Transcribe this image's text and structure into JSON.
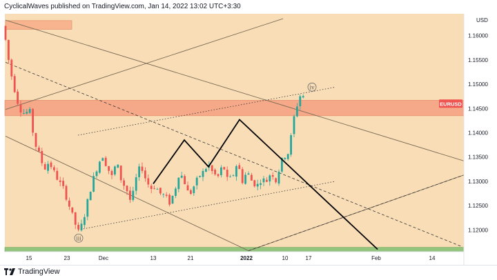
{
  "header": {
    "publisher_line": "CyclicalWaves published on TradingView.com, Jan 14, 2022 13:02 UTC+3:30"
  },
  "footer": {
    "brand": "TradingView"
  },
  "colors": {
    "background_fill": "#f9ddb6",
    "resistance_zone": "#f5a988",
    "top_box": "#f7b48e",
    "support_zone": "#93c47d",
    "candle_up": "#26a69a",
    "candle_down": "#ef5350",
    "symbol_tag": "#ef5350",
    "pattern_line": "#000000",
    "channel_line": "#7a6a55"
  },
  "chart_data": {
    "type": "candlestick",
    "symbol_label": "EURUSD",
    "currency_label": "USD",
    "y_axis_range": [
      1.1155,
      1.1645
    ],
    "y_ticks": [
      "1.16000",
      "1.15500",
      "1.15000",
      "1.14500",
      "1.14000",
      "1.13500",
      "1.13000",
      "1.12500",
      "1.12000"
    ],
    "x_ticks": [
      "15",
      "23",
      "Dec",
      "13",
      "21",
      "2022",
      "10",
      "17",
      "Feb",
      "14"
    ],
    "last_price": "1.1460",
    "price_path": [
      [
        0,
        1.162
      ],
      [
        7,
        1.16
      ],
      [
        14,
        1.1535
      ],
      [
        21,
        1.149
      ],
      [
        28,
        1.145
      ],
      [
        35,
        1.144
      ],
      [
        43,
        1.1445
      ],
      [
        50,
        1.138
      ],
      [
        57,
        1.1355
      ],
      [
        64,
        1.1325
      ],
      [
        71,
        1.134
      ],
      [
        78,
        1.132
      ],
      [
        85,
        1.13
      ],
      [
        92,
        1.1285
      ],
      [
        99,
        1.1255
      ],
      [
        106,
        1.1225
      ],
      [
        113,
        1.1195
      ],
      [
        120,
        1.1215
      ],
      [
        127,
        1.126
      ],
      [
        134,
        1.13
      ],
      [
        141,
        1.133
      ],
      [
        148,
        1.1355
      ],
      [
        155,
        1.133
      ],
      [
        162,
        1.131
      ],
      [
        169,
        1.134
      ],
      [
        176,
        1.13
      ],
      [
        183,
        1.1285
      ],
      [
        190,
        1.1255
      ],
      [
        197,
        1.1305
      ],
      [
        204,
        1.1335
      ],
      [
        211,
        1.1305
      ],
      [
        218,
        1.1285
      ],
      [
        225,
        1.129
      ],
      [
        232,
        1.1275
      ],
      [
        239,
        1.127
      ],
      [
        246,
        1.1255
      ],
      [
        253,
        1.128
      ],
      [
        260,
        1.132
      ],
      [
        267,
        1.13
      ],
      [
        274,
        1.127
      ],
      [
        281,
        1.129
      ],
      [
        288,
        1.131
      ],
      [
        295,
        1.132
      ],
      [
        302,
        1.1335
      ],
      [
        309,
        1.1315
      ],
      [
        316,
        1.131
      ],
      [
        323,
        1.1335
      ],
      [
        330,
        1.13
      ],
      [
        337,
        1.131
      ],
      [
        344,
        1.134
      ],
      [
        351,
        1.13
      ],
      [
        358,
        1.132
      ],
      [
        365,
        1.13
      ],
      [
        372,
        1.129
      ],
      [
        379,
        1.1305
      ],
      [
        386,
        1.13
      ],
      [
        393,
        1.132
      ],
      [
        400,
        1.13
      ],
      [
        407,
        1.134
      ],
      [
        414,
        1.1355
      ],
      [
        419,
        1.136
      ],
      [
        424,
        1.142
      ],
      [
        429,
        1.145
      ],
      [
        434,
        1.1475
      ],
      [
        438,
        1.148
      ],
      [
        442,
        1.1465
      ]
    ],
    "pattern_points": [
      [
        222,
        1.1295
      ],
      [
        267,
        1.1385
      ],
      [
        302,
        1.133
      ],
      [
        347,
        1.1427
      ],
      [
        547,
        1.116
      ]
    ],
    "wave_labels": [
      {
        "label": "iii",
        "x": 114,
        "y": 1.1183
      },
      {
        "label": "iv",
        "x": 452,
        "y": 1.1494
      }
    ],
    "channel_lines": [
      {
        "style": "solid",
        "from": [
          8,
          1.1448
        ],
        "to": [
          410,
          1.1635
        ]
      },
      {
        "style": "solid",
        "from": [
          8,
          1.1632
        ],
        "to": [
          672,
          1.1342
        ]
      },
      {
        "style": "solid",
        "from": [
          8,
          1.1393
        ],
        "to": [
          360,
          1.1157
        ]
      },
      {
        "style": "solid",
        "from": [
          360,
          1.1157
        ],
        "to": [
          672,
          1.1313
        ]
      },
      {
        "style": "dotted",
        "from": [
          113,
          1.1395
        ],
        "to": [
          486,
          1.1494
        ]
      },
      {
        "style": "dotted",
        "from": [
          113,
          1.12
        ],
        "to": [
          486,
          1.13
        ]
      },
      {
        "style": "dashed",
        "from": [
          8,
          1.1545
        ],
        "to": [
          670,
          1.1165
        ]
      },
      {
        "style": "dashed",
        "from": [
          360,
          1.1157
        ],
        "to": [
          672,
          1.1313
        ]
      }
    ],
    "zones": [
      {
        "name": "resistance",
        "y_from": 1.1435,
        "y_to": 1.1467
      },
      {
        "name": "support",
        "y_from": 1.1155,
        "y_to": 1.1164
      },
      {
        "name": "top-box",
        "x_from": 8,
        "x_to": 104,
        "y_from": 1.1613,
        "y_to": 1.1631
      }
    ]
  }
}
